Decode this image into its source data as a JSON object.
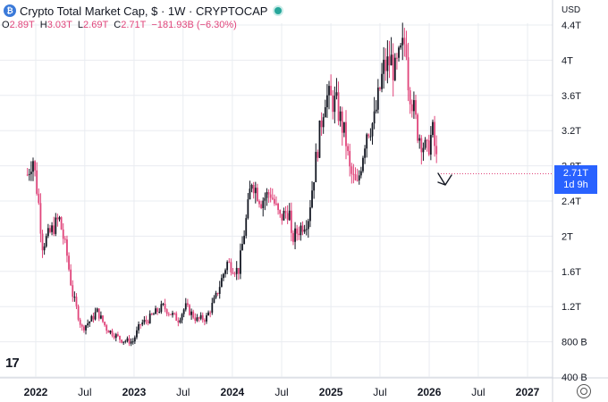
{
  "header": {
    "symbol_title": "Crypto Total Market Cap, $ · 1W · CRYPTOCAP",
    "icon_name": "crypto-coin-icon",
    "status_icon": "market-status-dot-icon"
  },
  "ohlc": {
    "o_label": "O",
    "o_value": "2.89T",
    "h_label": "H",
    "h_value": "3.03T",
    "l_label": "L",
    "l_value": "2.69T",
    "c_label": "C",
    "c_value": "2.71T",
    "change": "−181.93B (−6.30%)"
  },
  "currency": "USD",
  "price_tag": {
    "price": "2.71T",
    "countdown": "1d 9h"
  },
  "colors": {
    "up": "#131722",
    "down": "#e0457b",
    "price_tag": "#2962ff",
    "grid": "#e9ecf1"
  },
  "chart_data": {
    "type": "candlestick",
    "x_unit": "date",
    "y_unit": "USD (trillions)",
    "ylim": [
      0.38,
      4.45
    ],
    "y_ticks": [
      0.4,
      0.8,
      1.2,
      1.6,
      2.0,
      2.4,
      2.8,
      3.2,
      3.6,
      4.0,
      4.4
    ],
    "y_tick_labels": [
      "400 B",
      "800 B",
      "1.2T",
      "1.6T",
      "2T",
      "2.4T",
      "2.8T",
      "3.2T",
      "3.6T",
      "4T",
      "4.4T"
    ],
    "x_ticks": [
      "2021-12-31",
      "2022-07-01",
      "2022-12-31",
      "2023-07-01",
      "2023-12-31",
      "2024-07-01",
      "2024-12-31",
      "2025-07-01",
      "2025-12-31",
      "2026-07-01",
      "2026-12-31"
    ],
    "x_tick_labels": [
      "2022",
      "Jul",
      "2023",
      "Jul",
      "2024",
      "Jul",
      "2025",
      "Jul",
      "2026",
      "Jul",
      "2027"
    ],
    "grid": true,
    "last_price": 2.71,
    "annotation": "down-arrow-mark",
    "close_path": [
      [
        "2021-11-30",
        2.7
      ],
      [
        "2021-12-20",
        2.9
      ],
      [
        "2022-01-10",
        2.4
      ],
      [
        "2022-01-24",
        1.9
      ],
      [
        "2022-03-28",
        2.2
      ],
      [
        "2022-04-25",
        1.8
      ],
      [
        "2022-05-16",
        1.35
      ],
      [
        "2022-06-20",
        0.95
      ],
      [
        "2022-07-25",
        1.05
      ],
      [
        "2022-08-15",
        1.15
      ],
      [
        "2022-09-20",
        0.95
      ],
      [
        "2022-11-14",
        0.82
      ],
      [
        "2022-12-26",
        0.8
      ],
      [
        "2023-01-23",
        1.0
      ],
      [
        "2023-02-20",
        1.05
      ],
      [
        "2023-03-27",
        1.15
      ],
      [
        "2023-04-17",
        1.2
      ],
      [
        "2023-06-12",
        1.05
      ],
      [
        "2023-07-10",
        1.2
      ],
      [
        "2023-08-21",
        1.05
      ],
      [
        "2023-09-25",
        1.07
      ],
      [
        "2023-10-30",
        1.3
      ],
      [
        "2023-12-11",
        1.7
      ],
      [
        "2024-01-22",
        1.6
      ],
      [
        "2024-02-26",
        2.3
      ],
      [
        "2024-03-11",
        2.65
      ],
      [
        "2024-04-15",
        2.4
      ],
      [
        "2024-05-20",
        2.5
      ],
      [
        "2024-06-24",
        2.2
      ],
      [
        "2024-07-29",
        2.3
      ],
      [
        "2024-08-05",
        1.95
      ],
      [
        "2024-09-09",
        2.1
      ],
      [
        "2024-10-07",
        2.2
      ],
      [
        "2024-11-11",
        3.0
      ],
      [
        "2024-12-09",
        3.6
      ],
      [
        "2025-01-20",
        3.5
      ],
      [
        "2025-02-24",
        3.1
      ],
      [
        "2025-03-10",
        2.75
      ],
      [
        "2025-04-07",
        2.55
      ],
      [
        "2025-05-12",
        3.2
      ],
      [
        "2025-06-09",
        3.3
      ],
      [
        "2025-07-14",
        3.9
      ],
      [
        "2025-08-11",
        4.0
      ],
      [
        "2025-08-25",
        3.85
      ],
      [
        "2025-10-06",
        4.25
      ],
      [
        "2025-10-13",
        3.8
      ],
      [
        "2025-11-17",
        3.2
      ],
      [
        "2025-12-08",
        3.05
      ],
      [
        "2025-12-22",
        2.95
      ],
      [
        "2026-01-12",
        3.2
      ],
      [
        "2026-01-26",
        2.89
      ],
      [
        "2026-02-02",
        2.71
      ]
    ]
  }
}
